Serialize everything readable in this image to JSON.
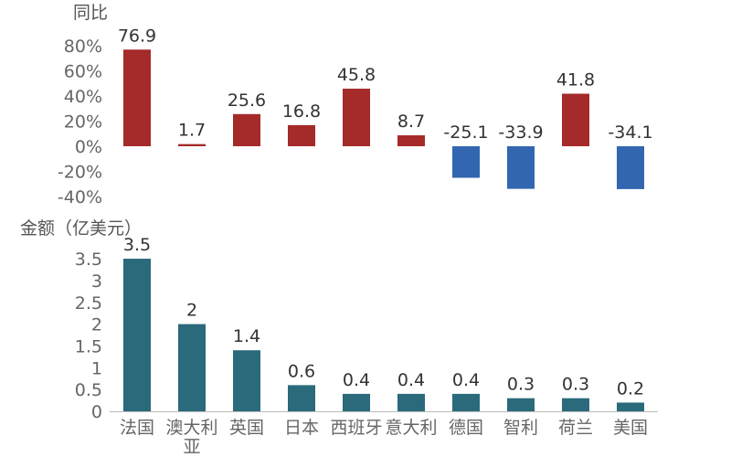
{
  "chart_data": [
    {
      "type": "bar",
      "title": "",
      "ylabel": "同比",
      "xlabel": "",
      "ylim": [
        -40,
        80
      ],
      "yticks": [
        "80%",
        "60%",
        "40%",
        "20%",
        "0%",
        "-20%",
        "-40%"
      ],
      "ytick_values": [
        80,
        60,
        40,
        20,
        0,
        -20,
        -40
      ],
      "categories": [
        "法国",
        "澳大利亚",
        "英国",
        "日本",
        "西班牙",
        "意大利",
        "德国",
        "智利",
        "荷兰",
        "美国"
      ],
      "values": [
        76.9,
        1.7,
        25.6,
        16.8,
        45.8,
        8.7,
        -25.1,
        -33.9,
        41.8,
        -34.1
      ],
      "value_labels": [
        "76.9",
        "1.7",
        "25.6",
        "16.8",
        "45.8",
        "8.7",
        "-25.1",
        "-33.9",
        "41.8",
        "-34.1"
      ],
      "positive_color": "#a52a2a",
      "negative_color": "#3366b0",
      "grid": false
    },
    {
      "type": "bar",
      "title": "",
      "ylabel": "金额（亿美元）",
      "xlabel": "",
      "ylim": [
        0,
        3.5
      ],
      "yticks": [
        "3.5",
        "3",
        "2.5",
        "2",
        "1.5",
        "1",
        "0.5",
        "0"
      ],
      "ytick_values": [
        3.5,
        3,
        2.5,
        2,
        1.5,
        1,
        0.5,
        0
      ],
      "categories": [
        "法国",
        "澳大利亚",
        "英国",
        "日本",
        "西班牙",
        "意大利",
        "德国",
        "智利",
        "荷兰",
        "美国"
      ],
      "category_labels": [
        [
          "法国"
        ],
        [
          "澳大利",
          "亚"
        ],
        [
          "英国"
        ],
        [
          "日本"
        ],
        [
          "西班牙"
        ],
        [
          "意大利"
        ],
        [
          "德国"
        ],
        [
          "智利"
        ],
        [
          "荷兰"
        ],
        [
          "美国"
        ]
      ],
      "values": [
        3.5,
        2,
        1.4,
        0.6,
        0.4,
        0.4,
        0.4,
        0.3,
        0.3,
        0.2
      ],
      "value_labels": [
        "3.5",
        "2",
        "1.4",
        "0.6",
        "0.4",
        "0.4",
        "0.4",
        "0.3",
        "0.3",
        "0.2"
      ],
      "bar_color": "#2a6a7a",
      "grid": false
    }
  ]
}
